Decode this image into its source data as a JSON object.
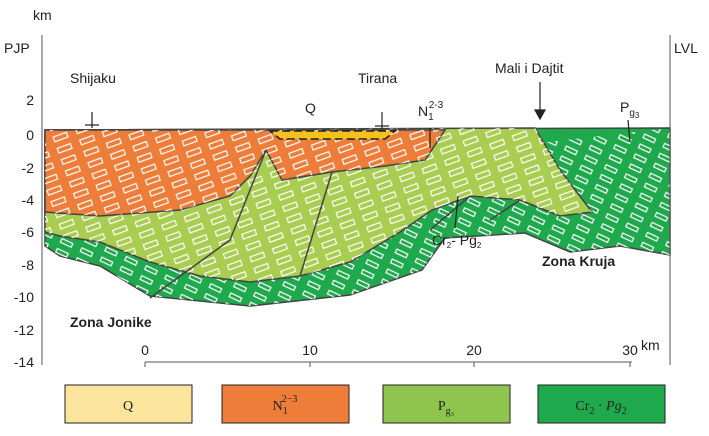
{
  "diagram": {
    "depth_axis": {
      "unit": "km",
      "ticks": [
        "2",
        "0",
        "-2",
        "-4",
        "-6",
        "-8",
        "-10",
        "-12",
        "-14"
      ]
    },
    "left_label": "PJP",
    "right_label": "LVL",
    "distance_axis": {
      "ticks": [
        "0",
        "10",
        "20",
        "30"
      ],
      "unit": "km"
    },
    "places": [
      "Shijaku",
      "Tirana",
      "Mali i Dajtit"
    ],
    "zones": [
      "Zona Jonike",
      "Zona Kruja"
    ],
    "section_labels": {
      "q": "Q",
      "n": {
        "symbol": "N",
        "sub": "1",
        "sup": "2-3"
      },
      "pg3": {
        "symbol": "P",
        "sub": "g",
        "subsub": "3"
      },
      "cr": {
        "a": "Cr",
        "a_sub": "2",
        "sep": "- ",
        "b": "Pg",
        "b_sub": "2"
      }
    },
    "legend": [
      {
        "symbol": "Q"
      },
      {
        "symbol": "N",
        "sub": "1",
        "sup": "2−3"
      },
      {
        "symbol": "P",
        "sub": "g₃"
      },
      {
        "symbol": "Cr",
        "sub": "2",
        "sep": " · ",
        "symbol2": "Pg",
        "sub2": "2"
      }
    ]
  }
}
